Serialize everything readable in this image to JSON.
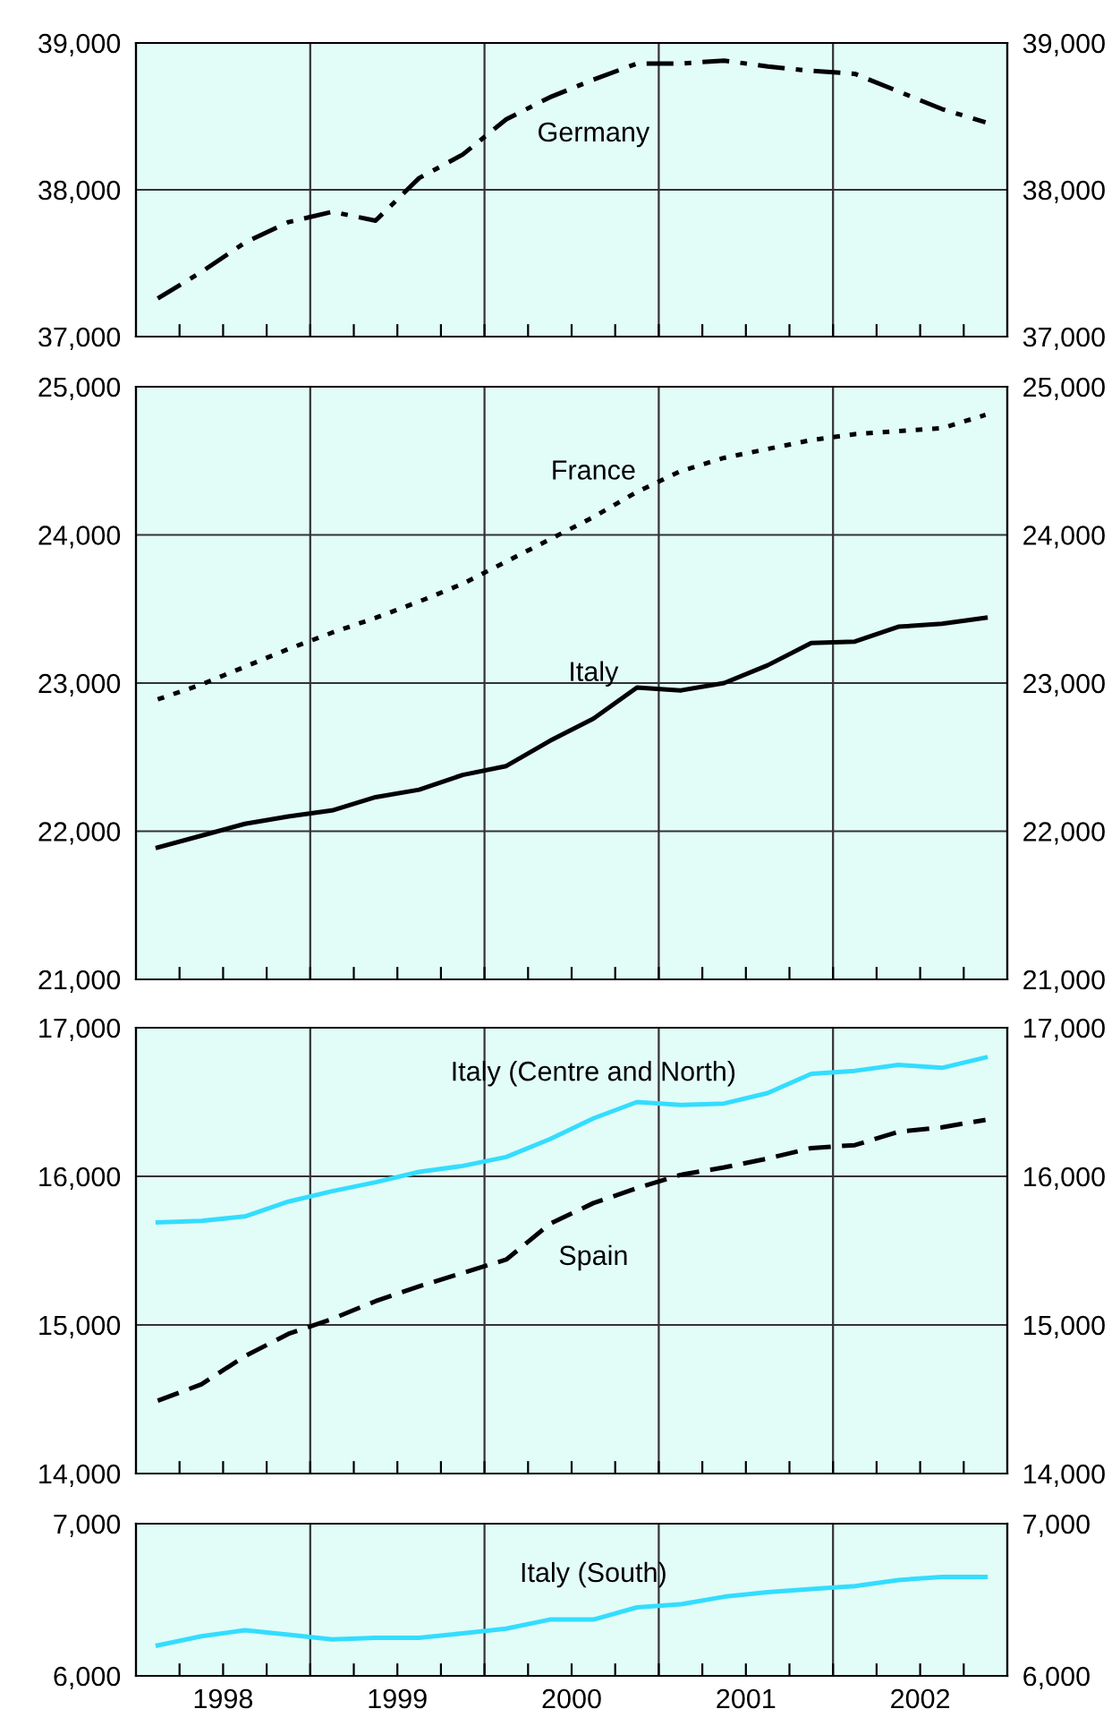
{
  "chart_data": [
    {
      "type": "line",
      "x": [
        1998.125,
        1998.375,
        1998.625,
        1998.875,
        1999.125,
        1999.375,
        1999.625,
        1999.875,
        2000.125,
        2000.375,
        2000.625,
        2000.875,
        2001.125,
        2001.375,
        2001.625,
        2001.875,
        2002.125,
        2002.375,
        2002.625,
        2002.875
      ],
      "series": [
        {
          "name": "Germany",
          "color": "#000000",
          "line_style": "dashdot",
          "values": [
            37260,
            37440,
            37640,
            37780,
            37850,
            37790,
            38080,
            38240,
            38480,
            38630,
            38750,
            38860,
            38860,
            38880,
            38840,
            38810,
            38790,
            38670,
            38550,
            38460
          ]
        }
      ],
      "xlim": [
        1998,
        2003
      ],
      "ylim": [
        37000,
        39000
      ],
      "y2lim": [
        37000,
        39000
      ],
      "yticks": [
        {
          "value": 37000,
          "label": "37,000"
        },
        {
          "value": 38000,
          "label": "38,000"
        },
        {
          "value": 39000,
          "label": "39,000"
        }
      ],
      "y2ticks": [
        {
          "value": 37000,
          "label": "37,000"
        },
        {
          "value": 38000,
          "label": "38,000"
        },
        {
          "value": 39000,
          "label": "39,000"
        }
      ],
      "xticks": [
        {
          "value": 1998.25,
          "label": null
        },
        {
          "value": 1998.5,
          "label": null
        },
        {
          "value": 1998.75,
          "label": null
        },
        {
          "value": 1999,
          "label": null
        },
        {
          "value": 1999.25,
          "label": null
        },
        {
          "value": 1999.5,
          "label": null
        },
        {
          "value": 1999.75,
          "label": null
        },
        {
          "value": 2000,
          "label": null
        },
        {
          "value": 2000.25,
          "label": null
        },
        {
          "value": 2000.5,
          "label": null
        },
        {
          "value": 2000.75,
          "label": null
        },
        {
          "value": 2001,
          "label": null
        },
        {
          "value": 2001.25,
          "label": null
        },
        {
          "value": 2001.5,
          "label": null
        },
        {
          "value": 2001.75,
          "label": null
        },
        {
          "value": 2002,
          "label": null
        },
        {
          "value": 2002.25,
          "label": null
        },
        {
          "value": 2002.5,
          "label": null
        },
        {
          "value": 2002.75,
          "label": null
        }
      ],
      "tick_labels": "y",
      "grid": true,
      "legend": false
    },
    {
      "type": "line",
      "x": [
        1998.125,
        1998.375,
        1998.625,
        1998.875,
        1999.125,
        1999.375,
        1999.625,
        1999.875,
        2000.125,
        2000.375,
        2000.625,
        2000.875,
        2001.125,
        2001.375,
        2001.625,
        2001.875,
        2002.125,
        2002.375,
        2002.625,
        2002.875
      ],
      "series": [
        {
          "name": "France",
          "color": "#000000",
          "line_style": "dotted",
          "values": [
            22890,
            22990,
            23110,
            23230,
            23340,
            23440,
            23550,
            23670,
            23820,
            23970,
            24120,
            24290,
            24430,
            24520,
            24580,
            24640,
            24680,
            24700,
            24720,
            24810
          ]
        },
        {
          "name": "Italy",
          "color": "#000000",
          "line_style": "solid",
          "values": [
            21890,
            21970,
            22050,
            22100,
            22140,
            22230,
            22280,
            22380,
            22440,
            22610,
            22760,
            22970,
            22950,
            23000,
            23120,
            23270,
            23280,
            23380,
            23400,
            23440
          ]
        }
      ],
      "xlim": [
        1998,
        2003
      ],
      "ylim": [
        21000,
        25000
      ],
      "y2lim": [
        21000,
        25000
      ],
      "yticks": [
        {
          "value": 21000,
          "label": "21,000"
        },
        {
          "value": 22000,
          "label": "22,000"
        },
        {
          "value": 23000,
          "label": "23,000"
        },
        {
          "value": 24000,
          "label": "24,000"
        },
        {
          "value": 25000,
          "label": "25,000"
        }
      ],
      "y2ticks": [
        {
          "value": 21000,
          "label": "21,000"
        },
        {
          "value": 22000,
          "label": "22,000"
        },
        {
          "value": 23000,
          "label": "23,000"
        },
        {
          "value": 24000,
          "label": "24,000"
        },
        {
          "value": 25000,
          "label": "25,000"
        }
      ],
      "xticks": [
        {
          "value": 1998.25,
          "label": null
        },
        {
          "value": 1998.5,
          "label": null
        },
        {
          "value": 1998.75,
          "label": null
        },
        {
          "value": 1999,
          "label": null
        },
        {
          "value": 1999.25,
          "label": null
        },
        {
          "value": 1999.5,
          "label": null
        },
        {
          "value": 1999.75,
          "label": null
        },
        {
          "value": 2000,
          "label": null
        },
        {
          "value": 2000.25,
          "label": null
        },
        {
          "value": 2000.5,
          "label": null
        },
        {
          "value": 2000.75,
          "label": null
        },
        {
          "value": 2001,
          "label": null
        },
        {
          "value": 2001.25,
          "label": null
        },
        {
          "value": 2001.5,
          "label": null
        },
        {
          "value": 2001.75,
          "label": null
        },
        {
          "value": 2002,
          "label": null
        },
        {
          "value": 2002.25,
          "label": null
        },
        {
          "value": 2002.5,
          "label": null
        },
        {
          "value": 2002.75,
          "label": null
        }
      ],
      "tick_labels": "y",
      "grid": true,
      "legend": false
    },
    {
      "type": "line",
      "x": [
        1998.125,
        1998.375,
        1998.625,
        1998.875,
        1999.125,
        1999.375,
        1999.625,
        1999.875,
        2000.125,
        2000.375,
        2000.625,
        2000.875,
        2001.125,
        2001.375,
        2001.625,
        2001.875,
        2002.125,
        2002.375,
        2002.625,
        2002.875
      ],
      "series": [
        {
          "name": "Italy (Centre and North)",
          "color": "#33ddff",
          "line_style": "solid",
          "values": [
            15690,
            15700,
            15730,
            15830,
            15900,
            15960,
            16030,
            16070,
            16130,
            16250,
            16390,
            16500,
            16480,
            16490,
            16560,
            16690,
            16710,
            16750,
            16730,
            16800
          ]
        },
        {
          "name": "Spain",
          "color": "#000000",
          "line_style": "dashed",
          "values": [
            14490,
            14600,
            14790,
            14940,
            15040,
            15160,
            15260,
            15350,
            15440,
            15680,
            15820,
            15920,
            16010,
            16060,
            16120,
            16190,
            16210,
            16300,
            16330,
            16380
          ]
        }
      ],
      "xlim": [
        1998,
        2003
      ],
      "ylim": [
        14000,
        17000
      ],
      "y2lim": [
        14000,
        17000
      ],
      "yticks": [
        {
          "value": 14000,
          "label": "14,000"
        },
        {
          "value": 15000,
          "label": "15,000"
        },
        {
          "value": 16000,
          "label": "16,000"
        },
        {
          "value": 17000,
          "label": "17,000"
        }
      ],
      "y2ticks": [
        {
          "value": 14000,
          "label": "14,000"
        },
        {
          "value": 15000,
          "label": "15,000"
        },
        {
          "value": 16000,
          "label": "16,000"
        },
        {
          "value": 17000,
          "label": "17,000"
        }
      ],
      "xticks": [
        {
          "value": 1998.25,
          "label": null
        },
        {
          "value": 1998.5,
          "label": null
        },
        {
          "value": 1998.75,
          "label": null
        },
        {
          "value": 1999,
          "label": null
        },
        {
          "value": 1999.25,
          "label": null
        },
        {
          "value": 1999.5,
          "label": null
        },
        {
          "value": 1999.75,
          "label": null
        },
        {
          "value": 2000,
          "label": null
        },
        {
          "value": 2000.25,
          "label": null
        },
        {
          "value": 2000.5,
          "label": null
        },
        {
          "value": 2000.75,
          "label": null
        },
        {
          "value": 2001,
          "label": null
        },
        {
          "value": 2001.25,
          "label": null
        },
        {
          "value": 2001.5,
          "label": null
        },
        {
          "value": 2001.75,
          "label": null
        },
        {
          "value": 2002,
          "label": null
        },
        {
          "value": 2002.25,
          "label": null
        },
        {
          "value": 2002.5,
          "label": null
        },
        {
          "value": 2002.75,
          "label": null
        }
      ],
      "tick_labels": "y",
      "grid": true,
      "legend": false
    },
    {
      "type": "line",
      "x": [
        1998.125,
        1998.375,
        1998.625,
        1998.875,
        1999.125,
        1999.375,
        1999.625,
        1999.875,
        2000.125,
        2000.375,
        2000.625,
        2000.875,
        2001.125,
        2001.375,
        2001.625,
        2001.875,
        2002.125,
        2002.375,
        2002.625,
        2002.875
      ],
      "series": [
        {
          "name": "Italy (South)",
          "color": "#33ddff",
          "line_style": "solid",
          "values": [
            6200,
            6260,
            6300,
            6270,
            6240,
            6250,
            6250,
            6280,
            6310,
            6370,
            6370,
            6450,
            6470,
            6520,
            6550,
            6570,
            6590,
            6630,
            6650,
            6650
          ]
        }
      ],
      "xlim": [
        1998,
        2003
      ],
      "ylim": [
        6000,
        7000
      ],
      "y2lim": [
        6000,
        7000
      ],
      "yticks": [
        {
          "value": 6000,
          "label": "6,000"
        },
        {
          "value": 7000,
          "label": "7,000"
        }
      ],
      "y2ticks": [
        {
          "value": 6000,
          "label": "6,000"
        },
        {
          "value": 7000,
          "label": "7,000"
        }
      ],
      "xticks": [
        {
          "value": 1998.25,
          "label": null
        },
        {
          "value": 1998.5,
          "label": "1998"
        },
        {
          "value": 1998.75,
          "label": null
        },
        {
          "value": 1999,
          "label": null
        },
        {
          "value": 1999.25,
          "label": null
        },
        {
          "value": 1999.5,
          "label": "1999"
        },
        {
          "value": 1999.75,
          "label": null
        },
        {
          "value": 2000,
          "label": null
        },
        {
          "value": 2000.25,
          "label": null
        },
        {
          "value": 2000.5,
          "label": "2000"
        },
        {
          "value": 2000.75,
          "label": null
        },
        {
          "value": 2001,
          "label": null
        },
        {
          "value": 2001.25,
          "label": null
        },
        {
          "value": 2001.5,
          "label": "2001"
        },
        {
          "value": 2001.75,
          "label": null
        },
        {
          "value": 2002,
          "label": null
        },
        {
          "value": 2002.25,
          "label": null
        },
        {
          "value": 2002.5,
          "label": "2002"
        },
        {
          "value": 2002.75,
          "label": null
        }
      ],
      "grid": true,
      "legend": false
    }
  ]
}
